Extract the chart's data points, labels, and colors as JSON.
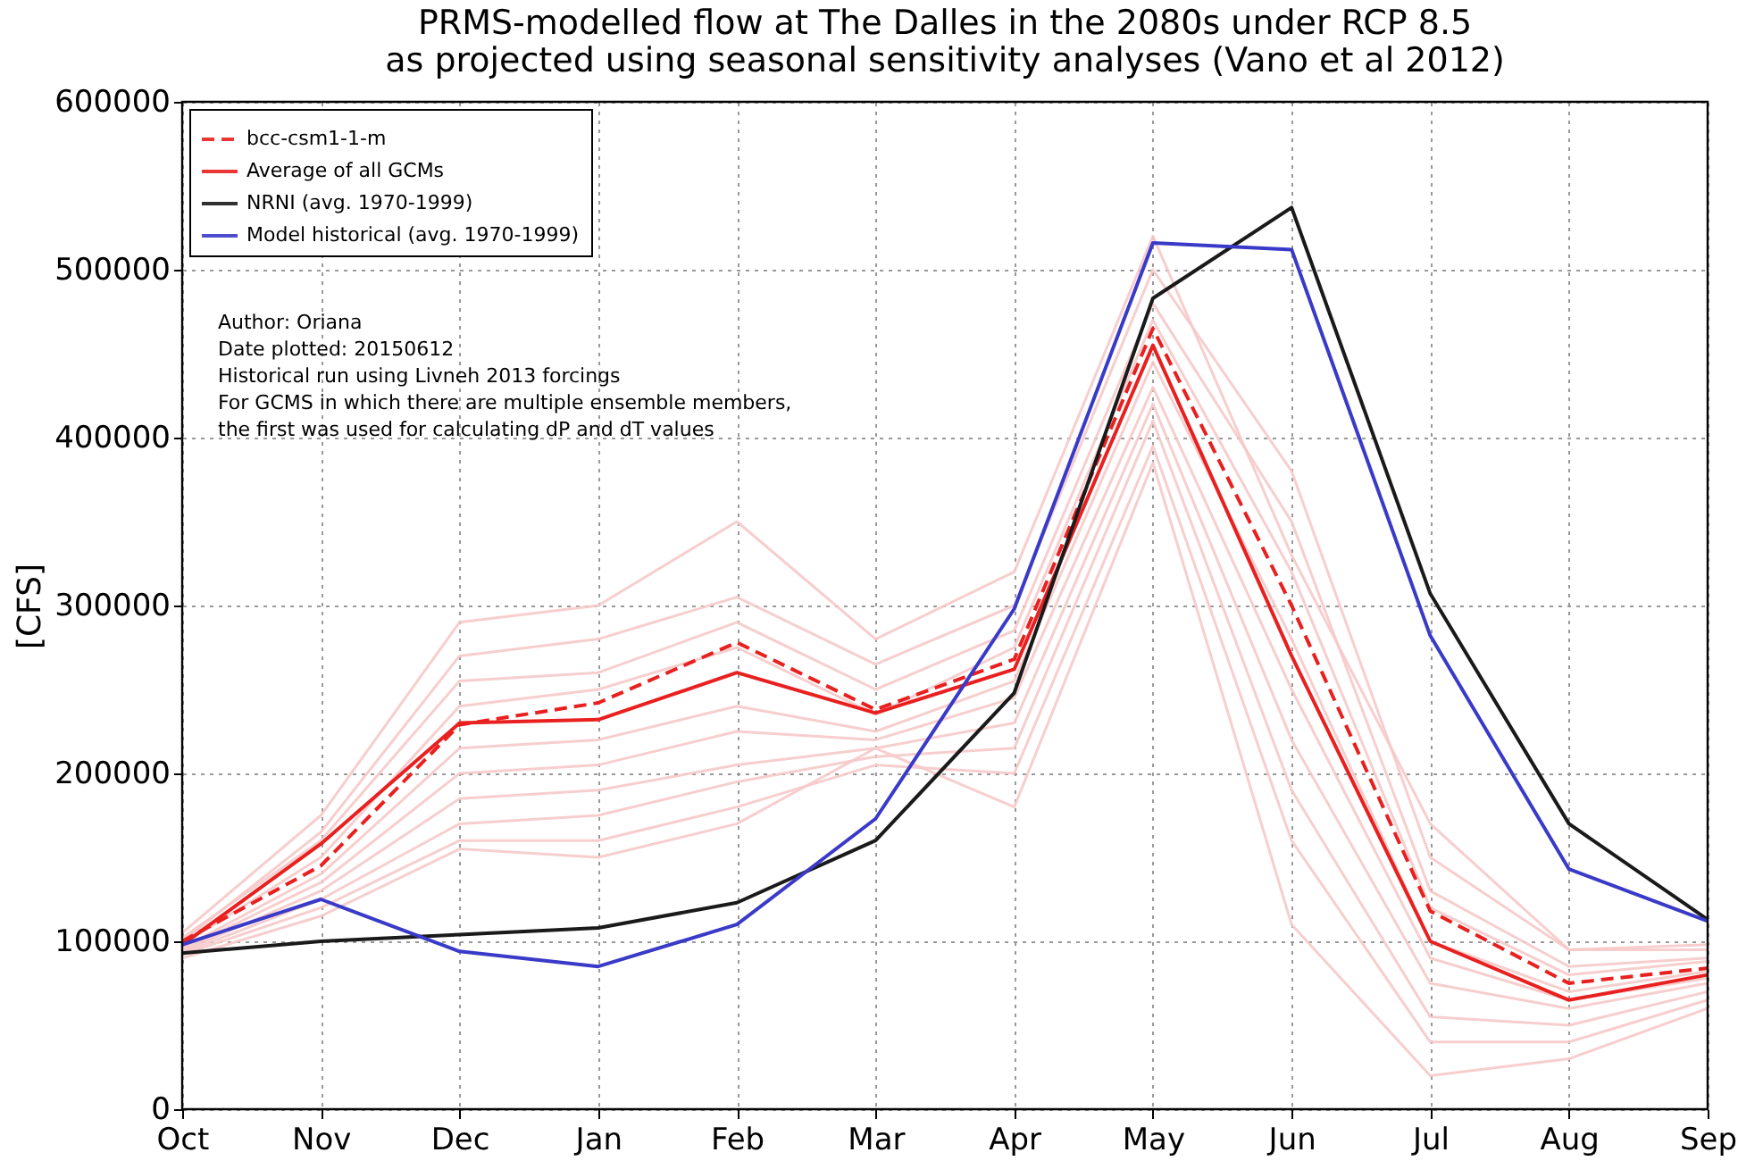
{
  "chart_data": {
    "type": "line",
    "title": [
      "PRMS-modelled flow at The Dalles in the 2080s under RCP 8.5",
      "as projected using seasonal sensitivity analyses (Vano et al 2012)"
    ],
    "ylabel": "[CFS]",
    "categories": [
      "Oct",
      "Nov",
      "Dec",
      "Jan",
      "Feb",
      "Mar",
      "Apr",
      "May",
      "Jun",
      "Jul",
      "Aug",
      "Sep"
    ],
    "ylim": [
      0,
      600000
    ],
    "yticks": [
      0,
      100000,
      200000,
      300000,
      400000,
      500000,
      600000
    ],
    "grid": true,
    "legend": "top left",
    "line_style": "solid",
    "annotations": [
      "Author: Oriana",
      "Date plotted: 20150612",
      "Historical run using Livneh 2013 forcings",
      "For GCMS in which there are multiple ensemble members,",
      "the first was used for calculating dP and dT values"
    ],
    "series": [
      {
        "color": "#f6c9c9",
        "values": [
          105000,
          175000,
          290000,
          300000,
          350000,
          280000,
          320000,
          520000,
          330000,
          170000,
          95000,
          98000
        ]
      },
      {
        "color": "#f6c9c9",
        "values": [
          100000,
          165000,
          270000,
          280000,
          305000,
          265000,
          300000,
          500000,
          380000,
          150000,
          95000,
          95000
        ]
      },
      {
        "color": "#f6c9c9",
        "values": [
          102000,
          160000,
          255000,
          260000,
          290000,
          250000,
          285000,
          480000,
          350000,
          130000,
          85000,
          90000
        ]
      },
      {
        "color": "#f6c9c9",
        "values": [
          98000,
          150000,
          240000,
          250000,
          275000,
          235000,
          275000,
          470000,
          320000,
          120000,
          80000,
          88000
        ]
      },
      {
        "color": "#f6c9c9",
        "values": [
          96000,
          140000,
          215000,
          220000,
          240000,
          225000,
          255000,
          445000,
          280000,
          100000,
          70000,
          82000
        ]
      },
      {
        "color": "#f6c9c9",
        "values": [
          95000,
          135000,
          200000,
          205000,
          225000,
          220000,
          245000,
          430000,
          250000,
          90000,
          65000,
          78000
        ]
      },
      {
        "color": "#f6c9c9",
        "values": [
          94000,
          130000,
          185000,
          190000,
          205000,
          215000,
          230000,
          420000,
          220000,
          75000,
          60000,
          75000
        ]
      },
      {
        "color": "#f6c9c9",
        "values": [
          93000,
          125000,
          170000,
          175000,
          195000,
          210000,
          215000,
          410000,
          190000,
          55000,
          50000,
          70000
        ]
      },
      {
        "color": "#f6c9c9",
        "values": [
          92000,
          120000,
          160000,
          160000,
          180000,
          205000,
          200000,
          395000,
          160000,
          40000,
          40000,
          65000
        ]
      },
      {
        "color": "#f6c9c9",
        "values": [
          90000,
          115000,
          155000,
          150000,
          170000,
          215000,
          180000,
          385000,
          110000,
          20000,
          30000,
          60000
        ]
      },
      {
        "name": "bcc-csm1-1-m",
        "color": "#e8201f",
        "line_style": "dashed",
        "values": [
          100000,
          145000,
          229000,
          242000,
          278000,
          238000,
          268000,
          465000,
          300000,
          118000,
          75000,
          84000
        ]
      },
      {
        "name": "Average of all GCMs",
        "color": "#e8201f",
        "values": [
          98000,
          158000,
          230000,
          232000,
          260000,
          236000,
          262000,
          455000,
          270000,
          100000,
          65000,
          80000
        ]
      },
      {
        "name": "NRNI (avg. 1970-1999)",
        "color": "#1a1a1a",
        "values": [
          93000,
          100000,
          104000,
          108000,
          123000,
          160000,
          248000,
          483000,
          537000,
          307000,
          170000,
          113000
        ]
      },
      {
        "name": "Model historical (avg. 1970-1999)",
        "color": "#3a3ac8",
        "values": [
          98000,
          125000,
          94000,
          85000,
          110000,
          173000,
          298000,
          516000,
          512000,
          282000,
          143000,
          112000
        ]
      }
    ]
  }
}
